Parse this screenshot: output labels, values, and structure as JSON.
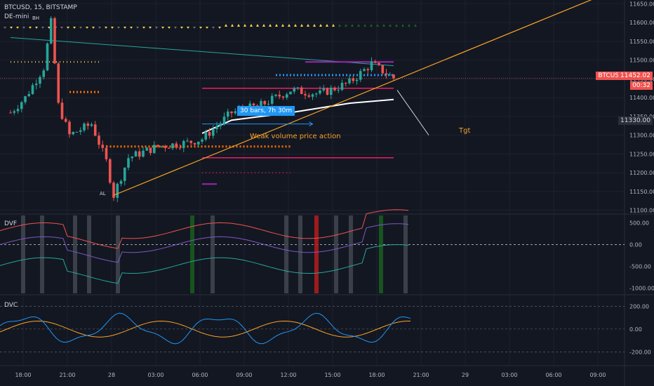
{
  "header": {
    "symbol_line": "BTCUSD, 15, BITSTAMP",
    "indicator": "DE-mini"
  },
  "price_axis": {
    "ticks": [
      "11650.00",
      "11600.00",
      "11550.00",
      "11500.00",
      "11450.00",
      "11400.00",
      "11350.00",
      "11300.00",
      "11250.00",
      "11200.00",
      "11150.00",
      "11100.00"
    ],
    "current_tag": "11452.02",
    "symbol_tag": "BTCUSD",
    "countdown": "00:32",
    "level_tag": "11330.00"
  },
  "time_axis": {
    "labels": [
      "18:00",
      "21:00",
      "28",
      "03:00",
      "06:00",
      "09:00",
      "12:00",
      "15:00",
      "18:00",
      "21:00",
      "29",
      "03:00",
      "06:00",
      "09:00"
    ]
  },
  "annotations": {
    "measure_box": "30 bars, 7h 30m",
    "volume_note": "Weak volume price action",
    "target": "Tgt",
    "high_mark": "BH",
    "low_mark": "AL"
  },
  "dvf_pane": {
    "label": "DVF",
    "ticks": [
      "500.00",
      "0.00",
      "-500.00",
      "-1000.00"
    ]
  },
  "dvc_pane": {
    "label": "DVC",
    "ticks": [
      "200.00",
      "0.00",
      "-200.00"
    ]
  },
  "colors": {
    "background": "#131722",
    "up_candle": "#26a69a",
    "down_candle": "#ef5350",
    "trendline": "#f7a226",
    "price_tag": "#ef5350",
    "measure": "#2196f3",
    "grid": "#1e2230"
  },
  "chart_data": {
    "type": "line",
    "title": "BTCUSD, 15, BITSTAMP",
    "price_range": [
      11090,
      11660
    ],
    "x_range": [
      "27 17:00",
      "29 09:30"
    ],
    "price_path": [
      [
        "27 17:00",
        11360
      ],
      [
        "27 18:00",
        11400
      ],
      [
        "27 19:15",
        11480
      ],
      [
        "27 19:45",
        11600
      ],
      [
        "27 20:15",
        11380
      ],
      [
        "27 21:00",
        11300
      ],
      [
        "27 22:30",
        11330
      ],
      [
        "27 23:30",
        11230
      ],
      [
        "28 00:00",
        11140
      ],
      [
        "28 01:00",
        11240
      ],
      [
        "28 03:00",
        11270
      ],
      [
        "28 05:00",
        11280
      ],
      [
        "28 06:00",
        11290
      ],
      [
        "28 08:00",
        11360
      ],
      [
        "28 10:00",
        11380
      ],
      [
        "28 12:00",
        11420
      ],
      [
        "28 14:00",
        11410
      ],
      [
        "28 16:00",
        11440
      ],
      [
        "28 17:30",
        11490
      ],
      [
        "28 19:00",
        11452.02
      ]
    ],
    "current_price": 11452.02,
    "dvf_range": [
      -1150,
      700
    ],
    "dvc_range": [
      -320,
      300
    ]
  }
}
